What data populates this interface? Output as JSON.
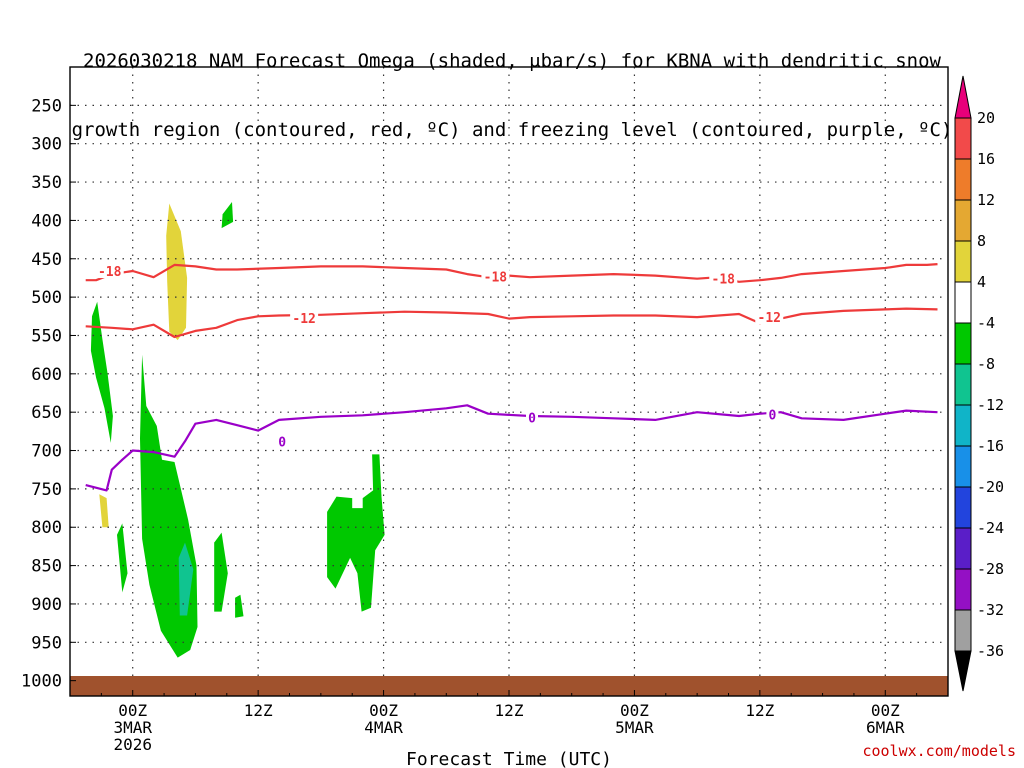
{
  "title": {
    "line1": "2026030218 NAM Forecast Omega (shaded, μbar/s) for KBNA with dendritic snow",
    "line2": "growth region (contoured, red, ºC) and freezing level (contoured, purple, ºC)"
  },
  "credit": "coolwx.com/models",
  "chart_data": {
    "type": "contour",
    "xlabel": "Forecast Time (UTC)",
    "ylabel": "",
    "x_range": [
      "2026-03-02 18Z",
      "2026-03-06 12Z"
    ],
    "x_ticks": [
      {
        "hour": 6,
        "labels": [
          "00Z",
          "3MAR",
          "2026"
        ]
      },
      {
        "hour": 18,
        "labels": [
          "12Z"
        ]
      },
      {
        "hour": 30,
        "labels": [
          "00Z",
          "4MAR"
        ]
      },
      {
        "hour": 42,
        "labels": [
          "12Z"
        ]
      },
      {
        "hour": 54,
        "labels": [
          "00Z",
          "5MAR"
        ]
      },
      {
        "hour": 66,
        "labels": [
          "12Z"
        ]
      },
      {
        "hour": 78,
        "labels": [
          "00Z",
          "6MAR"
        ]
      }
    ],
    "y_ticks": [
      250,
      300,
      350,
      400,
      450,
      500,
      550,
      600,
      650,
      700,
      750,
      800,
      850,
      900,
      950,
      1000
    ],
    "y_range": [
      200,
      1020
    ],
    "grid": true,
    "colorbar": {
      "unit": "μbar/s",
      "labels": [
        20,
        16,
        12,
        8,
        4,
        -4,
        -8,
        -12,
        -16,
        -20,
        -24,
        -28,
        -32,
        -36
      ],
      "colors": [
        "#e8007a",
        "#f24a4a",
        "#ee7c2a",
        "#e4a832",
        "#e2d43a",
        "#ffffff",
        "#00c800",
        "#10c490",
        "#10b4c8",
        "#1890e8",
        "#2244dd",
        "#5a1ec8",
        "#9410c4",
        "#a0a0a0",
        "#000000"
      ]
    },
    "contours": [
      {
        "name": "-18",
        "color": "#ee3a3a",
        "points": [
          [
            1.5,
            478
          ],
          [
            2.5,
            478
          ],
          [
            4,
            470
          ],
          [
            6,
            466
          ],
          [
            8,
            474
          ],
          [
            10,
            458
          ],
          [
            12,
            460
          ],
          [
            14,
            464
          ],
          [
            16,
            464
          ],
          [
            20,
            462
          ],
          [
            24,
            460
          ],
          [
            28,
            460
          ],
          [
            30,
            461
          ],
          [
            32,
            462
          ],
          [
            36,
            464
          ],
          [
            38,
            470
          ],
          [
            40,
            474
          ],
          [
            42,
            472
          ],
          [
            44,
            474
          ],
          [
            48,
            472
          ],
          [
            52,
            470
          ],
          [
            56,
            472
          ],
          [
            60,
            476
          ],
          [
            62,
            474
          ],
          [
            64,
            480
          ],
          [
            66,
            478
          ],
          [
            68,
            475
          ],
          [
            70,
            470
          ],
          [
            74,
            466
          ],
          [
            78,
            462
          ],
          [
            80,
            458
          ],
          [
            82,
            458
          ],
          [
            83,
            457
          ]
        ],
        "labels": [
          [
            3.8,
            466
          ],
          [
            40.7,
            473
          ],
          [
            62.5,
            476
          ]
        ]
      },
      {
        "name": "-12",
        "color": "#ee3a3a",
        "points": [
          [
            1.5,
            538
          ],
          [
            4,
            540
          ],
          [
            6,
            542
          ],
          [
            8,
            536
          ],
          [
            10,
            552
          ],
          [
            12,
            544
          ],
          [
            14,
            540
          ],
          [
            16,
            530
          ],
          [
            18,
            525
          ],
          [
            20,
            524
          ],
          [
            24,
            523
          ],
          [
            28,
            521
          ],
          [
            32,
            519
          ],
          [
            36,
            520
          ],
          [
            40,
            522
          ],
          [
            42,
            528
          ],
          [
            44,
            526
          ],
          [
            48,
            525
          ],
          [
            52,
            524
          ],
          [
            56,
            524
          ],
          [
            60,
            526
          ],
          [
            64,
            522
          ],
          [
            66,
            534
          ],
          [
            68,
            528
          ],
          [
            70,
            522
          ],
          [
            74,
            518
          ],
          [
            78,
            516
          ],
          [
            80,
            515
          ],
          [
            83,
            516
          ]
        ],
        "labels": [
          [
            22.4,
            527
          ],
          [
            66.9,
            526
          ]
        ]
      },
      {
        "name": "0",
        "color": "#9a00c8",
        "points": [
          [
            1.5,
            745
          ],
          [
            3.5,
            752
          ],
          [
            4,
            725
          ],
          [
            5,
            712
          ],
          [
            6,
            700
          ],
          [
            8,
            702
          ],
          [
            10,
            708
          ],
          [
            11,
            688
          ],
          [
            12,
            665
          ],
          [
            14,
            660
          ],
          [
            16,
            667
          ],
          [
            18,
            674
          ],
          [
            20,
            660
          ],
          [
            24,
            656
          ],
          [
            28,
            654
          ],
          [
            32,
            650
          ],
          [
            36,
            645
          ],
          [
            38,
            641
          ],
          [
            40,
            652
          ],
          [
            44,
            655
          ],
          [
            48,
            656
          ],
          [
            52,
            658
          ],
          [
            56,
            660
          ],
          [
            60,
            650
          ],
          [
            64,
            655
          ],
          [
            66,
            652
          ],
          [
            68,
            650
          ],
          [
            70,
            658
          ],
          [
            74,
            660
          ],
          [
            78,
            652
          ],
          [
            80,
            648
          ],
          [
            83,
            650
          ]
        ],
        "labels": [
          [
            20.3,
            688
          ],
          [
            44.2,
            657
          ],
          [
            67.2,
            653
          ]
        ]
      }
    ],
    "omega_regions": [
      {
        "value": 6,
        "color": "#e2d43a",
        "points": [
          [
            9.2,
            420
          ],
          [
            9.5,
            378
          ],
          [
            10.6,
            414
          ],
          [
            11.2,
            475
          ],
          [
            11.1,
            540
          ],
          [
            10.3,
            556
          ],
          [
            9.5,
            545
          ],
          [
            9.3,
            480
          ]
        ]
      },
      {
        "value": 6,
        "color": "#e2d43a",
        "points": [
          [
            2.8,
            757
          ],
          [
            3.5,
            762
          ],
          [
            3.7,
            800
          ],
          [
            3.1,
            800
          ]
        ]
      },
      {
        "value": -5,
        "color": "#00c800",
        "points": [
          [
            2.1,
            525
          ],
          [
            2.6,
            506
          ],
          [
            3.1,
            555
          ],
          [
            3.6,
            600
          ],
          [
            4.1,
            655
          ],
          [
            3.9,
            690
          ],
          [
            3.3,
            645
          ],
          [
            2.5,
            605
          ],
          [
            2.0,
            570
          ]
        ]
      },
      {
        "value": -5,
        "color": "#00c800",
        "points": [
          [
            6.7,
            684
          ],
          [
            6.9,
            575
          ],
          [
            7.3,
            642
          ],
          [
            8.3,
            668
          ],
          [
            8.8,
            712
          ],
          [
            10.0,
            715
          ],
          [
            11.3,
            790
          ],
          [
            12.1,
            850
          ],
          [
            12.2,
            930
          ],
          [
            11.5,
            960
          ],
          [
            10.3,
            970
          ],
          [
            8.7,
            935
          ],
          [
            7.6,
            875
          ],
          [
            6.9,
            815
          ]
        ]
      },
      {
        "value": -5,
        "color": "#00c800",
        "points": [
          [
            14.6,
            392
          ],
          [
            15.5,
            376
          ],
          [
            15.6,
            402
          ],
          [
            14.5,
            410
          ]
        ]
      },
      {
        "value": -5,
        "color": "#00c800",
        "points": [
          [
            4.5,
            810
          ],
          [
            5.0,
            795
          ],
          [
            5.5,
            860
          ],
          [
            5.0,
            885
          ]
        ]
      },
      {
        "value": -5,
        "color": "#00c800",
        "points": [
          [
            13.8,
            820
          ],
          [
            14.5,
            807
          ],
          [
            15.1,
            860
          ],
          [
            14.5,
            910
          ],
          [
            13.8,
            910
          ]
        ]
      },
      {
        "value": -5,
        "color": "#00c800",
        "points": [
          [
            15.8,
            892
          ],
          [
            16.3,
            888
          ],
          [
            16.6,
            916
          ],
          [
            15.8,
            918
          ]
        ]
      },
      {
        "value": -5,
        "color": "#00c800",
        "points": [
          [
            24.6,
            780
          ],
          [
            25.5,
            760
          ],
          [
            27.0,
            762
          ],
          [
            27.0,
            775
          ],
          [
            28.0,
            775
          ],
          [
            28.0,
            762
          ],
          [
            29.0,
            752
          ],
          [
            28.9,
            705
          ],
          [
            29.6,
            705
          ],
          [
            29.8,
            760
          ],
          [
            30.1,
            810
          ],
          [
            29.2,
            830
          ],
          [
            28.8,
            905
          ],
          [
            27.9,
            910
          ],
          [
            27.5,
            860
          ],
          [
            26.8,
            840
          ],
          [
            25.4,
            880
          ],
          [
            24.6,
            865
          ]
        ]
      },
      {
        "value": -9,
        "color": "#10c490",
        "points": [
          [
            10.4,
            840
          ],
          [
            11.0,
            820
          ],
          [
            11.8,
            855
          ],
          [
            11.2,
            915
          ],
          [
            10.5,
            915
          ]
        ]
      }
    ]
  }
}
